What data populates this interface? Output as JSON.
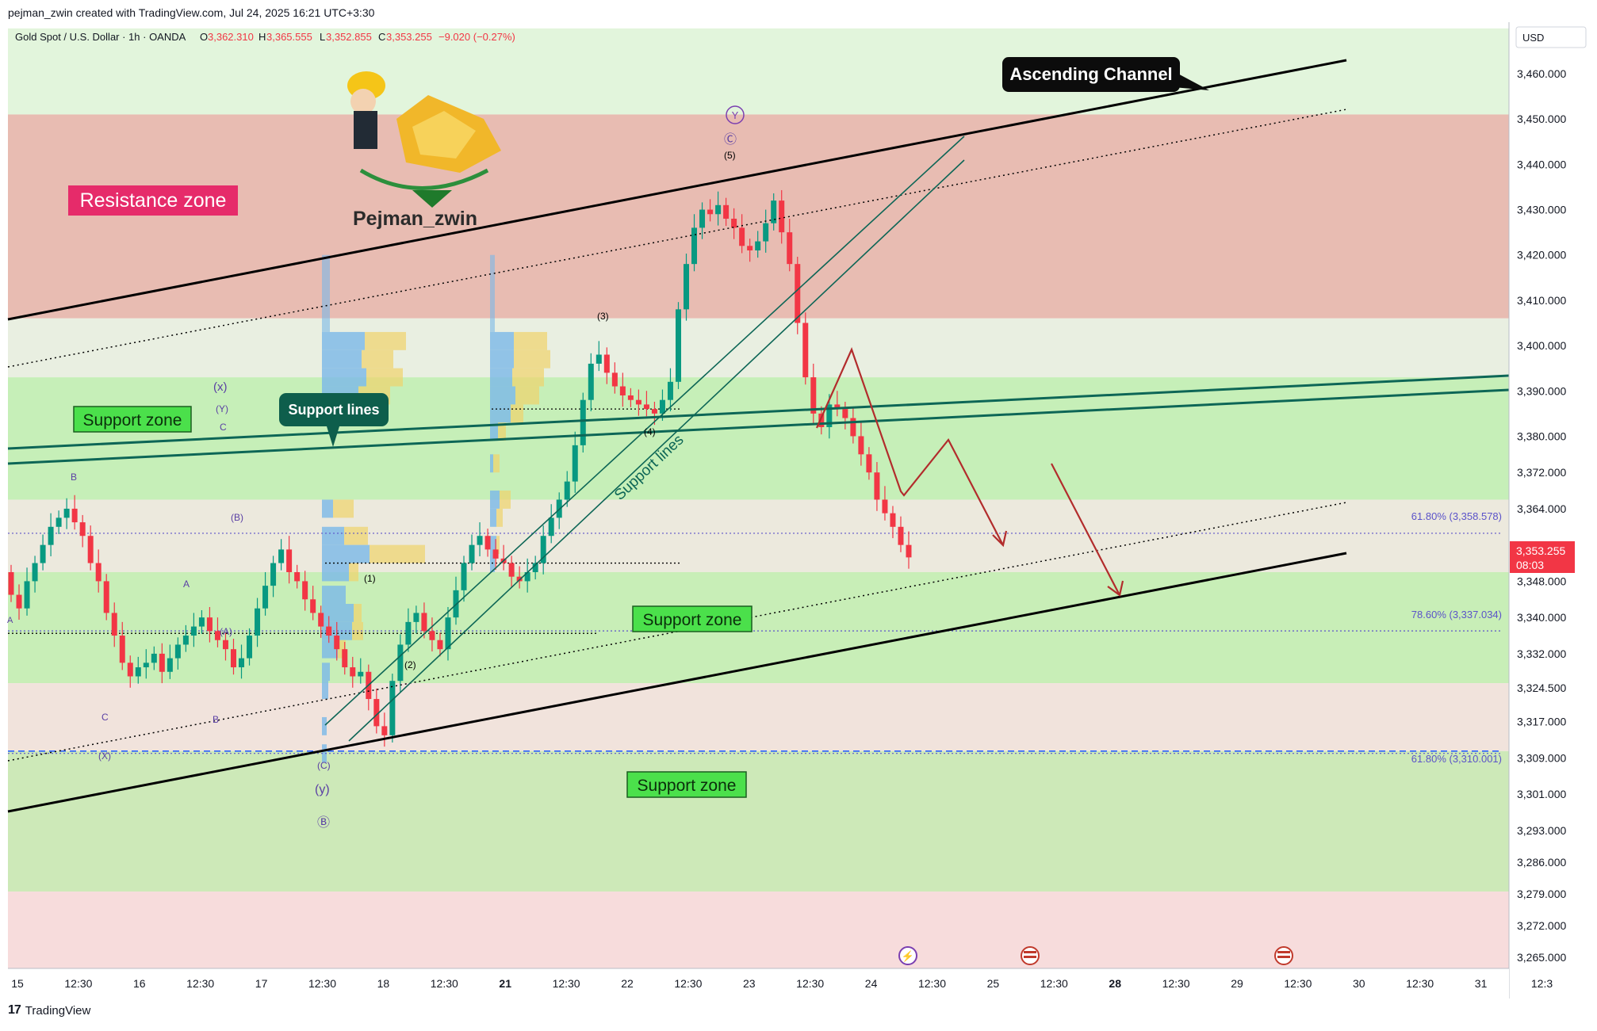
{
  "header": {
    "created_by": "pejman_zwin created with TradingView.com, Jul 24, 2025 16:21 UTC+3:30"
  },
  "legend": {
    "symbol": "Gold Spot / U.S. Dollar · 1h · OANDA",
    "o_label": "O",
    "o_value": "3,362.310",
    "h_label": "H",
    "h_value": "3,365.555",
    "l_label": "L",
    "l_value": "3,352.855",
    "c_label": "C",
    "c_value": "3,353.255",
    "change": "−9.020 (−0.27%)"
  },
  "currency_label": "USD",
  "price_tag": {
    "value": "3,353.255",
    "countdown": "08:03"
  },
  "logo_text": "Pejman_zwin",
  "brand": "TradingView",
  "labels": {
    "resistance_zone": "Resistance zone",
    "support_zone_1": "Support zone",
    "support_zone_2": "Support zone",
    "support_zone_3": "Support zone",
    "support_lines_callout": "Support lines",
    "support_lines_diag": "Support lines",
    "ascending_channel": "Ascending Channel"
  },
  "fib_labels": {
    "fib_618_upper": "61.80% (3,358.578)",
    "fib_786": "78.60% (3,337.034)",
    "fib_618_lower": "61.80% (3,310.001)"
  },
  "wave_labels": {
    "w_B1": "B",
    "w_A1": "A",
    "w_C1": "C",
    "w_B2": "B",
    "w_X": "(X)",
    "w_x": "(x)",
    "w_Y_small": "(Y)",
    "w_C_small": "C",
    "w_B_paren": "(B)",
    "w_A_paren": "(A)",
    "w_C_paren": "(C)",
    "w_y": "(y)",
    "w_B_circ": "Ⓑ",
    "w_1": "(1)",
    "w_2": "(2)",
    "w_3": "(3)",
    "w_4": "(4)",
    "w_5": "(5)",
    "w_C_circ": "Ⓒ",
    "w_Y_circ": "Y",
    "w_A_edge": "A"
  },
  "chart_data": {
    "type": "candlestick",
    "symbol": "XAUUSD",
    "interval": "1h",
    "y_ticks": [
      3460,
      3450,
      3440,
      3430,
      3420,
      3410,
      3400,
      3390,
      3380,
      3372,
      3364,
      3356,
      3348,
      3340,
      3332,
      3324.5,
      3317,
      3309,
      3301,
      3293,
      3286,
      3279,
      3272,
      3265
    ],
    "y_tick_labels": [
      "3,460.000",
      "3,450.000",
      "3,440.000",
      "3,430.000",
      "3,420.000",
      "3,410.000",
      "3,400.000",
      "3,390.000",
      "3,380.000",
      "3,372.000",
      "3,364.000",
      "3,356.000",
      "3,348.000",
      "3,340.000",
      "3,332.000",
      "3,324.500",
      "3,317.000",
      "3,309.000",
      "3,301.000",
      "3,293.000",
      "3,286.000",
      "3,279.000",
      "3,272.000",
      "3,265.000"
    ],
    "x_tick_labels": [
      "15",
      "12:30",
      "16",
      "12:30",
      "17",
      "12:30",
      "18",
      "12:30",
      "21",
      "12:30",
      "22",
      "12:30",
      "23",
      "12:30",
      "24",
      "12:30",
      "25",
      "12:30",
      "28",
      "12:30",
      "29",
      "12:30",
      "30",
      "12:30",
      "31",
      "12:3"
    ],
    "zones": [
      {
        "name": "top-light-green",
        "from": 3451,
        "to": 3470,
        "color": "#e2f5dc"
      },
      {
        "name": "resistance",
        "from": 3406,
        "to": 3451,
        "color": "#e8bcb2"
      },
      {
        "name": "neutral-1",
        "from": 3393,
        "to": 3406,
        "color": "#e9efe1"
      },
      {
        "name": "support-upper",
        "from": 3366,
        "to": 3393,
        "color": "#c6efb8"
      },
      {
        "name": "neutral-2",
        "from": 3350,
        "to": 3366,
        "color": "#ece9dd"
      },
      {
        "name": "support-mid",
        "from": 3325.5,
        "to": 3350,
        "color": "#c8eeb7"
      },
      {
        "name": "neutral-3",
        "from": 3310.5,
        "to": 3325.5,
        "color": "#f1e3dc"
      },
      {
        "name": "support-low",
        "from": 3279.5,
        "to": 3310.5,
        "color": "#cde9b8"
      },
      {
        "name": "bottom-pink",
        "from": 3258,
        "to": 3279.5,
        "color": "#f7dcdc"
      }
    ],
    "fib_levels": [
      {
        "value": 3358.578,
        "label": "61.80% (3,358.578)"
      },
      {
        "value": 3337.034,
        "label": "78.60% (3,337.034)"
      },
      {
        "value": 3310.001,
        "label": "61.80% (3,310.001)"
      }
    ],
    "candles_close": [
      3345,
      3342,
      3348,
      3352,
      3356,
      3360,
      3362,
      3364,
      3361,
      3358,
      3352,
      3348,
      3341,
      3336,
      3330,
      3327,
      3329,
      3330,
      3332,
      3328,
      3331,
      3334,
      3336,
      3338,
      3340,
      3337,
      3335,
      3333,
      3329,
      3331,
      3336,
      3342,
      3347,
      3352,
      3355,
      3350,
      3348,
      3344,
      3341,
      3338,
      3336,
      3333,
      3329,
      3327,
      3328,
      3322,
      3316,
      3314,
      3326,
      3334,
      3339,
      3341,
      3337,
      3335,
      3333,
      3340,
      3346,
      3352,
      3356,
      3358,
      3355,
      3353,
      3352,
      3349,
      3348,
      3350,
      3352,
      3358,
      3362,
      3366,
      3370,
      3378,
      3388,
      3396,
      3398,
      3394,
      3391,
      3389,
      3388,
      3387,
      3386,
      3385,
      3388,
      3392,
      3408,
      3418,
      3426,
      3430,
      3429,
      3431,
      3428,
      3426,
      3422,
      3421,
      3423,
      3427,
      3432,
      3425,
      3418,
      3405,
      3393,
      3385,
      3382,
      3387,
      3386,
      3384,
      3380,
      3376,
      3372,
      3366,
      3363,
      3360,
      3356,
      3353.255
    ],
    "trendlines": [
      {
        "name": "channel-top",
        "from": [
          "x0",
          3399
        ],
        "to": [
          "x1",
          3462
        ]
      },
      {
        "name": "channel-bottom",
        "from": [
          "x0",
          3298
        ],
        "to": [
          "x1",
          3353
        ]
      },
      {
        "name": "support-line-1",
        "from": [
          "x0",
          3380
        ],
        "to": [
          "x1",
          3392
        ]
      },
      {
        "name": "support-line-2",
        "from": [
          "x0",
          3377
        ],
        "to": [
          "x1",
          3388
        ]
      }
    ]
  }
}
